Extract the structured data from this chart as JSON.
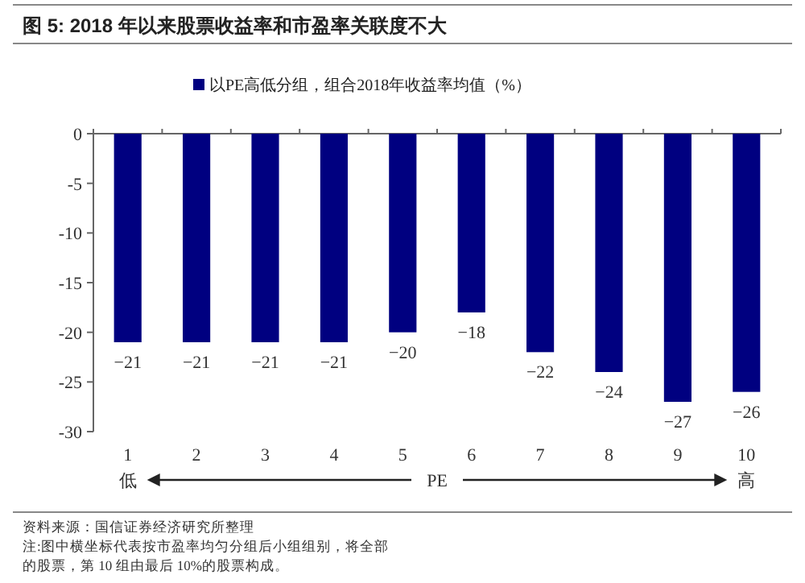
{
  "chart_data": {
    "type": "bar",
    "title": "图 5:  2018 年以来股票收益率和市盈率关联度不大",
    "categories": [
      "1",
      "2",
      "3",
      "4",
      "5",
      "6",
      "7",
      "8",
      "9",
      "10"
    ],
    "series": [
      {
        "name": "以PE高低分组，组合2018年收益率均值（%）",
        "color": "#000080",
        "values": [
          -21,
          -21,
          -21,
          -21,
          -20,
          -18,
          -22,
          -24,
          -27,
          -26
        ]
      }
    ],
    "ylim": [
      -30,
      0
    ],
    "yticks": [
      -30,
      -25,
      -20,
      -15,
      -10,
      -5,
      0
    ],
    "legend": "top",
    "data_labels": true,
    "grid": false,
    "annotations": [
      "低",
      "PE",
      "高",
      "资料来源：国信证券经济研究所整理",
      "注:图中横坐标代表按市盈率均匀分组后小组组别，将全部",
      "的股票，第 10 组由最后 10%的股票构成。"
    ]
  }
}
